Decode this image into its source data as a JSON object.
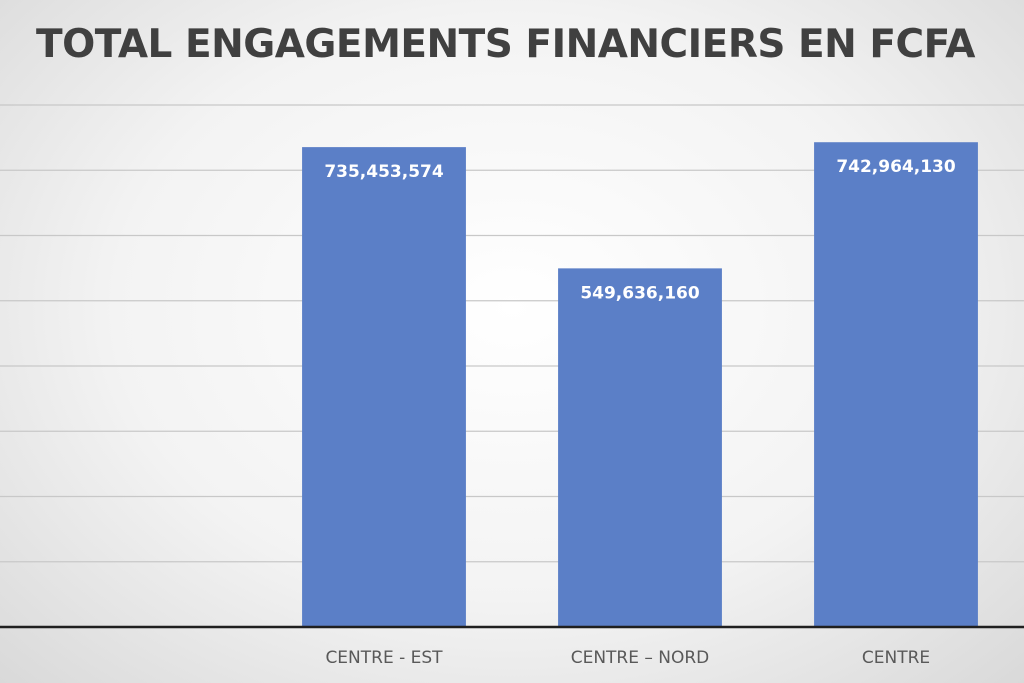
{
  "chart_data": {
    "type": "bar",
    "title": "TOTAL ENGAGEMENTS FINANCIERS EN FCFA",
    "categories": [
      "",
      "CENTRE - EST",
      "CENTRE – NORD",
      "CENTRE"
    ],
    "values": [
      null,
      735453574,
      549636160,
      742964130
    ],
    "data_labels": [
      "",
      "735,453,574",
      "549,636,160",
      "742,964,130"
    ],
    "xlabel": "",
    "ylabel": "",
    "ylim": [
      0,
      800000000
    ],
    "gridlines": true,
    "legend": "none",
    "bar_color": "#5b7fc7",
    "label_color": "#ffffff",
    "axis_label_color": "#595959",
    "grid_color": "#c8c8c8",
    "axis_color": "#1f1f1f"
  }
}
